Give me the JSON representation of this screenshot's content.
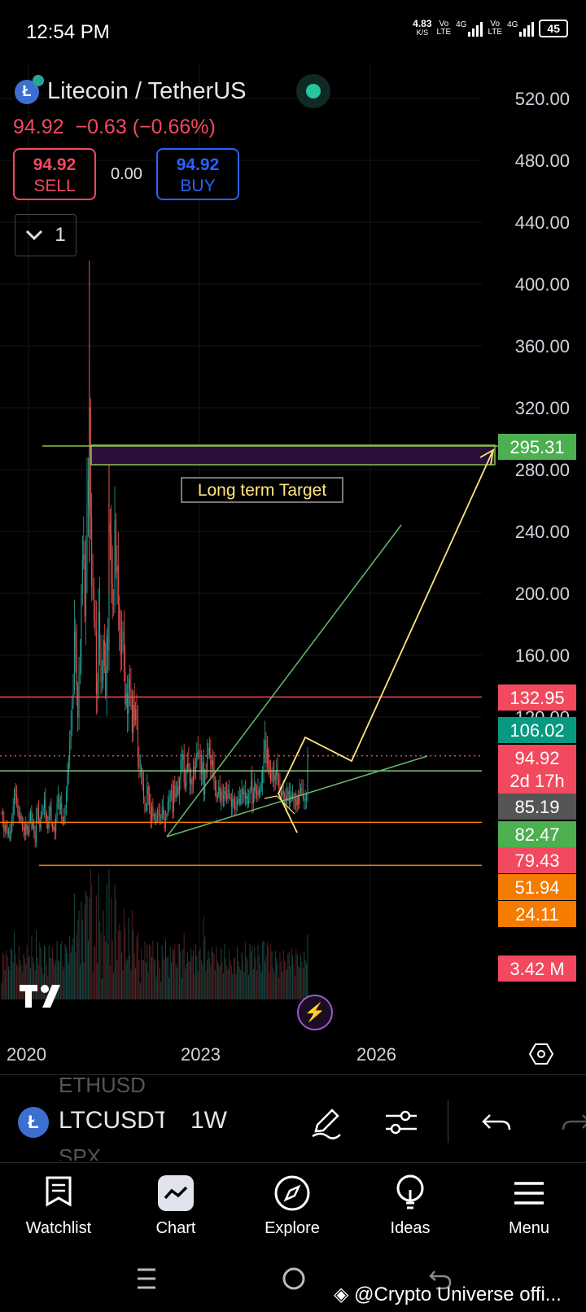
{
  "status_bar": {
    "time": "12:54 PM",
    "speed": "4.83",
    "speed_unit": "K/S",
    "battery": "45"
  },
  "header": {
    "title": "Litecoin / TetherUS",
    "last": "94.92",
    "change": "−0.63",
    "change_pct": "(−0.66%)",
    "sell": {
      "price": "94.92",
      "label": "SELL"
    },
    "buy": {
      "price": "94.92",
      "label": "BUY"
    },
    "spread": "0.00",
    "interval_count": "1"
  },
  "chart_data": {
    "type": "candlestick",
    "symbol": "LTCUSDT",
    "interval": "1W",
    "y_axis_ticks": [
      "520.00",
      "480.00",
      "440.00",
      "400.00",
      "360.00",
      "320.00",
      "280.00",
      "240.00",
      "200.00",
      "160.00",
      "120.00"
    ],
    "ylim": [
      0,
      540
    ],
    "x_axis_ticks": [
      "2020",
      "2023",
      "2026"
    ],
    "annotation": "Long term Target",
    "price_tags": [
      {
        "value": "295.31",
        "color": "#4caf50"
      },
      {
        "value": "132.95",
        "color": "#f2495e"
      },
      {
        "value": "106.02",
        "color": "#089981"
      },
      {
        "value": "94.92",
        "sub": "2d 17h",
        "color": "#f2495e"
      },
      {
        "value": "85.19",
        "color": "#555555"
      },
      {
        "value": "82.47",
        "color": "#4caf50"
      },
      {
        "value": "79.43",
        "color": "#f2495e"
      },
      {
        "value": "51.94",
        "color": "#f57c00"
      },
      {
        "value": "24.11",
        "color": "#f57c00"
      },
      {
        "value": "3.42 M",
        "color": "#f2495e"
      }
    ],
    "horizontal_lines": [
      {
        "price": 132.95,
        "color": "#f2495e"
      },
      {
        "price": 85.19,
        "color": "#81c784"
      },
      {
        "price": 51.94,
        "color": "#f57c00"
      },
      {
        "price": 24.11,
        "color": "#f57c00"
      }
    ],
    "close_series": [
      58,
      54,
      46,
      50,
      48,
      44,
      47,
      41,
      46,
      55,
      62,
      73,
      69,
      66,
      59,
      54,
      56,
      52,
      47,
      49,
      44,
      51,
      47,
      45,
      53,
      59,
      48,
      52,
      46,
      39,
      55,
      61,
      54,
      48,
      56,
      58,
      61,
      67,
      57,
      52,
      48,
      56,
      62,
      51,
      47,
      49,
      45,
      56,
      65,
      68,
      60,
      64,
      53,
      51,
      56,
      62,
      71,
      82,
      92,
      104,
      112,
      129,
      137,
      175,
      165,
      140,
      120,
      150,
      155,
      200,
      222,
      225,
      185,
      220,
      257,
      274,
      320,
      250,
      205,
      204,
      183,
      176,
      135,
      143,
      188,
      165,
      143,
      144,
      170,
      153,
      134,
      172,
      163,
      245,
      238,
      206,
      193,
      193,
      247,
      214,
      218,
      193,
      177,
      160,
      170,
      175,
      149,
      128,
      135,
      122,
      145,
      138,
      134,
      110,
      128,
      118,
      125,
      114,
      96,
      88,
      88,
      82,
      77,
      67,
      60,
      60,
      75,
      70,
      63,
      52,
      62,
      56,
      57,
      52,
      53,
      60,
      58,
      55,
      55,
      62,
      57,
      48,
      55,
      57,
      65,
      66,
      71,
      72,
      58,
      76,
      68,
      70,
      75,
      70,
      80,
      91,
      92,
      96,
      78,
      75,
      86,
      90,
      86,
      77,
      80,
      76,
      88,
      84,
      91,
      97,
      95,
      95,
      88,
      83,
      91,
      70,
      85,
      84,
      96,
      100,
      95,
      89,
      92,
      87,
      78,
      73,
      68,
      70,
      75,
      66,
      72,
      69,
      67,
      72,
      70,
      67,
      73,
      69,
      67,
      62,
      67,
      66,
      60,
      62,
      66,
      67,
      64,
      70,
      73,
      70,
      72,
      67,
      69,
      64,
      66,
      72,
      79,
      64,
      71,
      77,
      72,
      69,
      73,
      70,
      73,
      77,
      85,
      98,
      105,
      90,
      99,
      87,
      84,
      79,
      85,
      83,
      79,
      82,
      86,
      80,
      77,
      73,
      69,
      72,
      70,
      69,
      64,
      70,
      72,
      64,
      69,
      67,
      70,
      67,
      66,
      63,
      68,
      64,
      72,
      74,
      71,
      67,
      67,
      66,
      70,
      94.92
    ]
  },
  "toolbar": {
    "symbol": "LTCUSDT",
    "interval": "1W",
    "ghost_top": "ETHUSD",
    "ghost_bottom": "SPX"
  },
  "nav": {
    "watchlist": "Watchlist",
    "chart": "Chart",
    "explore": "Explore",
    "ideas": "Ideas",
    "menu": "Menu"
  },
  "watermark": "@Crypto Universe offi..."
}
